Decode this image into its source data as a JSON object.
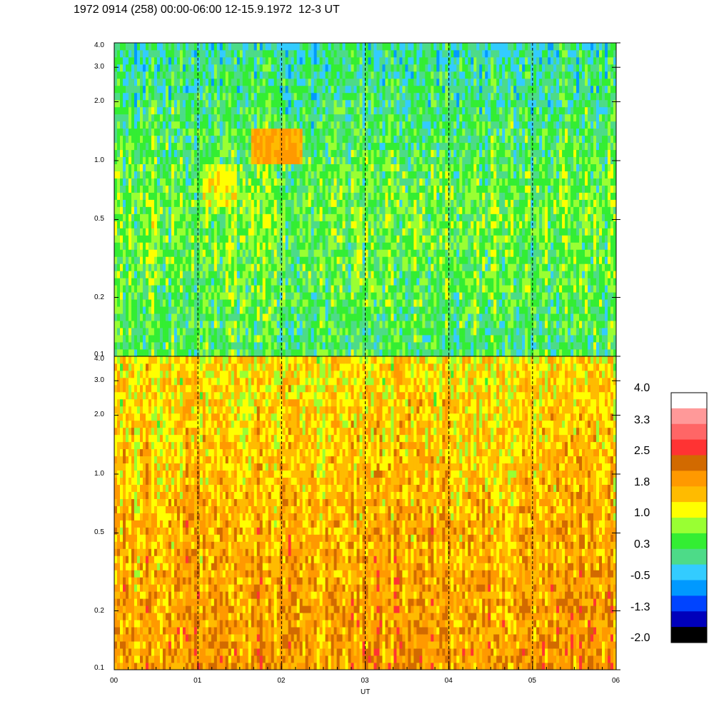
{
  "title": "1972 0914 (258) 00:00-06:00 12-15.9.1972  12-3 UT",
  "chart_data": [
    {
      "type": "heatmap",
      "panel": "top",
      "xlabel": "UT",
      "x_range": [
        0,
        6
      ],
      "yscale": "log",
      "ylim": [
        0.1,
        4.0
      ],
      "ytick_labels": [
        "0.1",
        "0.2",
        "0.5",
        "1.0",
        "2.0",
        "3.0",
        "4.0"
      ],
      "ytick_values": [
        0.1,
        0.2,
        0.5,
        1.0,
        2.0,
        3.0,
        4.0
      ],
      "dashed_vlines_ut": [
        1,
        2,
        3,
        4,
        5
      ],
      "description_levels": {
        "low_freq_band": 0.3,
        "mid_band": 0.6,
        "high_band": 0.0,
        "hotspots": [
          {
            "x0": 1.65,
            "x1": 2.25,
            "y0": 1.0,
            "y1": 1.5,
            "level": 1.8
          },
          {
            "x0": 1.05,
            "x1": 1.45,
            "y0": 0.6,
            "y1": 1.0,
            "level": 1.2
          }
        ]
      }
    },
    {
      "type": "heatmap",
      "panel": "bottom",
      "xlabel": "UT",
      "x_range": [
        0,
        6
      ],
      "yscale": "log",
      "ylim": [
        0.1,
        4.0
      ],
      "ytick_labels": [
        "0.1",
        "0.2",
        "0.5",
        "1.0",
        "2.0",
        "3.0",
        "4.0"
      ],
      "ytick_values": [
        0.1,
        0.2,
        0.5,
        1.0,
        2.0,
        3.0,
        4.0
      ],
      "dashed_vlines_ut": [
        1,
        2,
        3,
        4,
        5
      ],
      "description_levels": {
        "low_freq_band": 1.9,
        "mid_band": 1.7,
        "high_band": 1.3
      }
    }
  ],
  "x_ticks": [
    "00",
    "01",
    "02",
    "03",
    "04",
    "05",
    "06"
  ],
  "xlabel": "UT",
  "colorbar": {
    "labels": [
      "4.0",
      "3.3",
      "2.5",
      "1.8",
      "1.0",
      "0.3",
      "-0.5",
      "-1.3",
      "-2.0"
    ],
    "colors": [
      "#ffffff",
      "#ff9999",
      "#ff6666",
      "#ff3333",
      "#d26a00",
      "#ff9900",
      "#ffbb00",
      "#ffff00",
      "#99ff33",
      "#33ee33",
      "#4ddb88",
      "#33ccff",
      "#0099ff",
      "#0044ff",
      "#0000bb",
      "#000000"
    ]
  }
}
